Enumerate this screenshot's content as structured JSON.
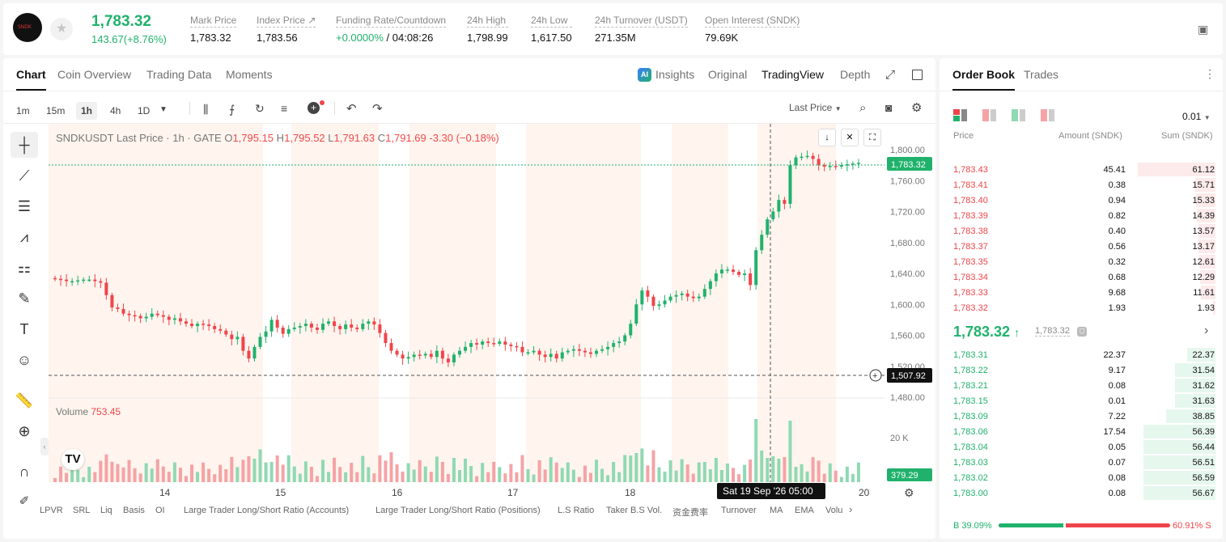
{
  "header": {
    "logo_text": "SNDK",
    "price": "1,783.32",
    "change": "143.67(+8.76%)",
    "stats": [
      {
        "label": "Mark Price",
        "value": "1,783.32"
      },
      {
        "label": "Index Price ↗",
        "value": "1,783.56"
      },
      {
        "label": "Funding Rate/Countdown",
        "value_green": "+0.0000%",
        "value": " / 04:08:26"
      },
      {
        "label": "24h High",
        "value": "1,798.99"
      },
      {
        "label": "24h Low",
        "value": "1,617.50"
      },
      {
        "label": "24h Turnover (USDT)",
        "value": "271.35M"
      },
      {
        "label": "Open Interest (SNDK)",
        "value": "79.69K"
      }
    ]
  },
  "chart_tabs": [
    "Chart",
    "Coin Overview",
    "Trading Data",
    "Moments"
  ],
  "view_tabs": {
    "insights": "Insights",
    "original": "Original",
    "tradingview": "TradingView",
    "depth": "Depth"
  },
  "timeframes": [
    "1m",
    "15m",
    "1h",
    "4h",
    "1D"
  ],
  "last_price_select": "Last Price",
  "legend": {
    "symbol": "SNDKUSDT Last Price · 1h · GATE",
    "o": "O",
    "o_val": "1,795.15",
    "h": "H",
    "h_val": "1,795.52",
    "l": "L",
    "l_val": "1,791.63",
    "c": "C",
    "c_val": "1,791.69",
    "chg": "-3.30 (−0.18%)"
  },
  "volume": {
    "label": "Volume",
    "value": "753.45",
    "axis_label": "20 K",
    "last": "379.29"
  },
  "price_axis": [
    "1,800.00",
    "1,760.00",
    "1,720.00",
    "1,680.00",
    "1,640.00",
    "1,600.00",
    "1,560.00",
    "1,520.00",
    "1,480.00"
  ],
  "last_price_tag": "1,783.32",
  "crosshair_price": "1,507.92",
  "x_axis": [
    "14",
    "15",
    "16",
    "17",
    "18",
    "20"
  ],
  "crosshair_time": "Sat 19 Sep '26   05:00",
  "indicators": [
    "LPVR",
    "SRL",
    "Liq",
    "Basis",
    "OI",
    "Large Trader Long/Short Ratio (Accounts)",
    "Large Trader Long/Short Ratio (Positions)",
    "L.S Ratio",
    "Taker B.S Vol.",
    "资金费率",
    "Turnover",
    "MA",
    "EMA",
    "Volu"
  ],
  "orderbook": {
    "tabs": [
      "Order Book",
      "Trades"
    ],
    "precision": "0.01",
    "col_price": "Price",
    "col_amount": "Amount (SNDK)",
    "col_sum": "Sum (SNDK)",
    "asks": [
      [
        "1,783.43",
        "45.41",
        "61.12"
      ],
      [
        "1,783.41",
        "0.38",
        "15.71"
      ],
      [
        "1,783.40",
        "0.94",
        "15.33"
      ],
      [
        "1,783.39",
        "0.82",
        "14.39"
      ],
      [
        "1,783.38",
        "0.40",
        "13.57"
      ],
      [
        "1,783.37",
        "0.56",
        "13.17"
      ],
      [
        "1,783.35",
        "0.32",
        "12.61"
      ],
      [
        "1,783.34",
        "0.68",
        "12.29"
      ],
      [
        "1,783.33",
        "9.68",
        "11.61"
      ],
      [
        "1,783.32",
        "1.93",
        "1.93"
      ]
    ],
    "mid_price": "1,783.32",
    "mid_mark": "1,783.32",
    "bids": [
      [
        "1,783.31",
        "22.37",
        "22.37"
      ],
      [
        "1,783.22",
        "9.17",
        "31.54"
      ],
      [
        "1,783.21",
        "0.08",
        "31.62"
      ],
      [
        "1,783.15",
        "0.01",
        "31.63"
      ],
      [
        "1,783.09",
        "7.22",
        "38.85"
      ],
      [
        "1,783.06",
        "17.54",
        "56.39"
      ],
      [
        "1,783.04",
        "0.05",
        "56.44"
      ],
      [
        "1,783.03",
        "0.07",
        "56.51"
      ],
      [
        "1,783.02",
        "0.08",
        "56.59"
      ],
      [
        "1,783.00",
        "0.08",
        "56.67"
      ]
    ],
    "buy_pct": "B 39.09%",
    "sell_pct": "60.91% S",
    "buy_ratio": 0.3909
  },
  "colors": {
    "up": "#20b26c",
    "down": "#ef454a"
  }
}
